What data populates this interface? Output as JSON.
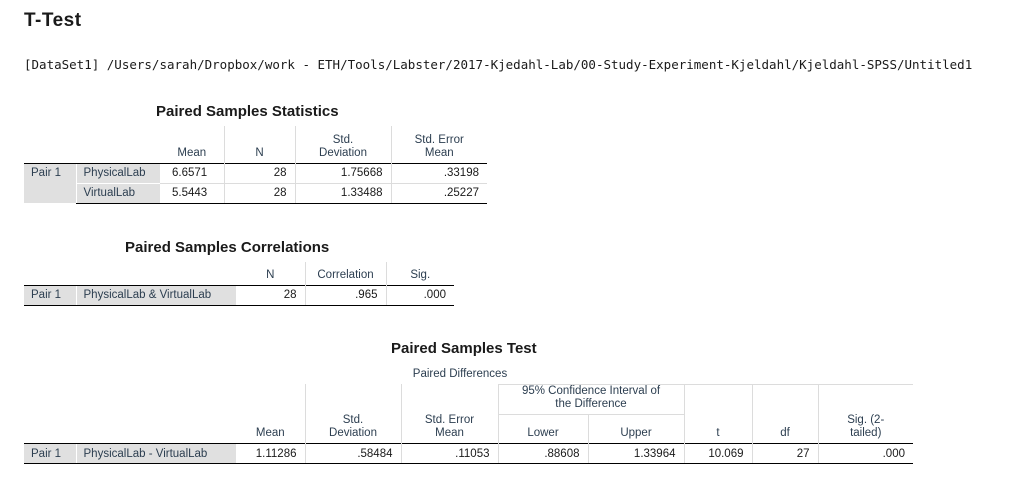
{
  "heading": "T-Test",
  "dataset_path": "[DataSet1] /Users/sarah/Dropbox/work - ETH/Tools/Labster/2017-Kjedahl-Lab/00-Study-Experiment-Kjeldahl/Kjeldahl-SPSS/Untitled1",
  "stats": {
    "title": "Paired Samples Statistics",
    "headers": {
      "mean": "Mean",
      "n": "N",
      "sd1": "Std.",
      "sd2": "Deviation",
      "se1": "Std. Error",
      "se2": "Mean"
    },
    "pair": "Pair 1",
    "rows": [
      {
        "label": "PhysicalLab",
        "mean": "6.6571",
        "n": "28",
        "sd": "1.75668",
        "se": ".33198"
      },
      {
        "label": "VirtualLab",
        "mean": "5.5443",
        "n": "28",
        "sd": "1.33488",
        "se": ".25227"
      }
    ]
  },
  "corr": {
    "title": "Paired Samples Correlations",
    "headers": {
      "n": "N",
      "correlation": "Correlation",
      "sig": "Sig."
    },
    "pair": "Pair 1",
    "label": "PhysicalLab & VirtualLab",
    "n": "28",
    "correlation": ".965",
    "sig": ".000"
  },
  "test": {
    "title": "Paired Samples Test",
    "headers": {
      "paired_diff": "Paired Differences",
      "ci1": "95% Confidence Interval of",
      "ci2": "the Difference",
      "mean": "Mean",
      "sd1": "Std.",
      "sd2": "Deviation",
      "se1": "Std. Error",
      "se2": "Mean",
      "lower": "Lower",
      "upper": "Upper",
      "t": "t",
      "df": "df",
      "sig1": "Sig. (2-",
      "sig2": "tailed)"
    },
    "pair": "Pair 1",
    "label": "PhysicalLab - VirtualLab",
    "mean": "1.11286",
    "sd": ".58484",
    "se": ".11053",
    "lower": ".88608",
    "upper": "1.33964",
    "t": "10.069",
    "df": "27",
    "sig": ".000"
  }
}
